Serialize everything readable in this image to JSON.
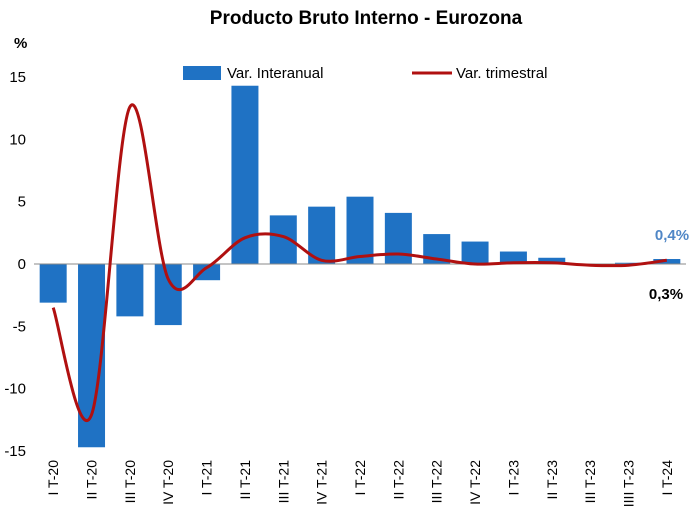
{
  "chart_data": {
    "type": "bar",
    "title": "Producto Bruto Interno - Eurozona",
    "ylabel": "%",
    "ylim": [
      -15,
      15
    ],
    "yticks": [
      15,
      10,
      5,
      0,
      -5,
      -10,
      -15
    ],
    "grid": false,
    "legend_position": "top",
    "categories": [
      "I T-20",
      "II T-20",
      "III T-20",
      "IV T-20",
      "I T-21",
      "II T-21",
      "III T-21",
      "IV T-21",
      "I T-22",
      "II T-22",
      "III T-22",
      "IV T-22",
      "I T-23",
      "II T-23",
      "III T-23",
      "IIII T-23",
      "I T-24"
    ],
    "series": [
      {
        "name": "Var. Interanual",
        "type": "bar",
        "color": "#1f72c4",
        "values": [
          -3.1,
          -14.7,
          -4.2,
          -4.9,
          -1.3,
          14.3,
          3.9,
          4.6,
          5.4,
          4.1,
          2.4,
          1.8,
          1.0,
          0.5,
          0.0,
          0.1,
          0.4
        ]
      },
      {
        "name": "Var. trimestral",
        "type": "line",
        "color": "#b01010",
        "values": [
          -3.5,
          -12.1,
          12.6,
          -1.2,
          -0.3,
          2.1,
          2.2,
          0.3,
          0.6,
          0.8,
          0.4,
          0.0,
          0.1,
          0.1,
          -0.1,
          -0.1,
          0.3
        ]
      }
    ],
    "annotations": {
      "bar_last": "0,4%",
      "line_last": "0,3%"
    }
  }
}
